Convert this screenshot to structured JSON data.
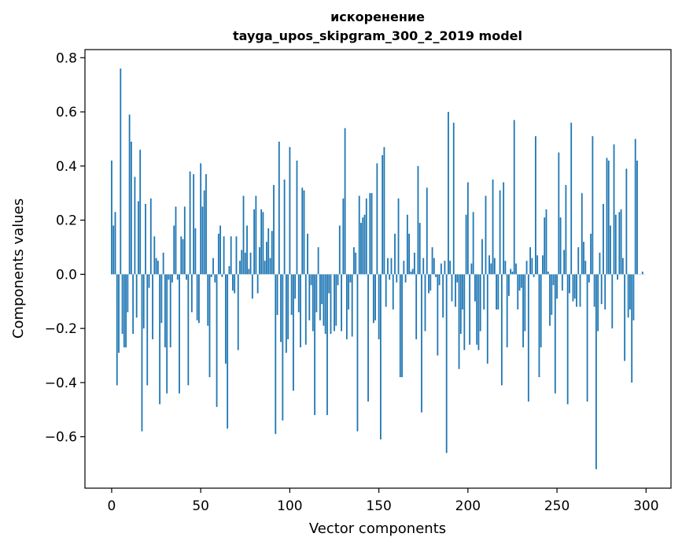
{
  "chart_data": {
    "type": "bar",
    "title": "искоренение",
    "subtitle": "tayga_upos_skipgram_300_2_2019 model",
    "xlabel": "Vector components",
    "ylabel": "Components values",
    "xlim": [
      -15,
      314
    ],
    "ylim": [
      -0.79,
      0.83
    ],
    "xticks": [
      0,
      50,
      100,
      150,
      200,
      250,
      300
    ],
    "yticks": [
      -0.6,
      -0.4,
      -0.2,
      0.0,
      0.2,
      0.4,
      0.6,
      0.8
    ],
    "xtick_labels": [
      "0",
      "50",
      "100",
      "150",
      "200",
      "250",
      "300"
    ],
    "ytick_labels": [
      "−0.6",
      "−0.4",
      "−0.2",
      "0.0",
      "0.2",
      "0.4",
      "0.6",
      "0.8"
    ],
    "grid": false,
    "color": "#1f77b4",
    "series": [
      {
        "values": [
          0.42,
          0.18,
          0.23,
          -0.41,
          -0.29,
          0.76,
          -0.22,
          -0.27,
          -0.27,
          -0.14,
          0.59,
          0.49,
          -0.22,
          0.36,
          -0.16,
          0.27,
          0.46,
          -0.58,
          -0.2,
          0.26,
          -0.41,
          -0.05,
          0.28,
          -0.24,
          0.14,
          0.06,
          0.05,
          -0.48,
          -0.18,
          0.08,
          -0.27,
          -0.44,
          -0.02,
          -0.27,
          -0.03,
          0.18,
          0.25,
          -0.02,
          -0.44,
          0.14,
          0.13,
          0.25,
          -0.02,
          -0.41,
          0.38,
          -0.14,
          0.37,
          0.17,
          -0.17,
          -0.18,
          0.41,
          0.25,
          0.31,
          0.37,
          -0.19,
          -0.38,
          -0.01,
          0.06,
          -0.03,
          -0.49,
          0.15,
          0.18,
          -0.01,
          0.14,
          -0.33,
          -0.57,
          0.03,
          0.14,
          -0.06,
          -0.07,
          0.14,
          -0.28,
          0.05,
          0.09,
          0.29,
          0.08,
          0.18,
          0.02,
          0.08,
          -0.09,
          0.24,
          0.29,
          -0.07,
          0.1,
          0.24,
          0.23,
          0.05,
          0.12,
          0.17,
          0.06,
          0.16,
          0.33,
          -0.59,
          -0.15,
          0.49,
          -0.25,
          -0.54,
          0.35,
          -0.29,
          -0.24,
          0.47,
          -0.15,
          -0.43,
          -0.09,
          0.42,
          -0.14,
          -0.27,
          0.32,
          0.31,
          -0.26,
          0.15,
          -0.17,
          -0.04,
          -0.21,
          -0.52,
          -0.14,
          0.1,
          -0.17,
          -0.11,
          -0.19,
          -0.22,
          -0.52,
          -0.07,
          -0.22,
          0.0,
          -0.21,
          -0.19,
          -0.04,
          0.18,
          -0.21,
          0.28,
          0.54,
          -0.24,
          -0.13,
          -0.03,
          -0.23,
          0.1,
          0.08,
          -0.58,
          0.29,
          0.19,
          0.21,
          0.22,
          0.28,
          -0.47,
          0.3,
          0.3,
          -0.18,
          -0.17,
          0.41,
          -0.24,
          -0.61,
          0.44,
          0.47,
          -0.12,
          0.06,
          -0.02,
          0.06,
          -0.13,
          0.15,
          -0.03,
          0.28,
          -0.38,
          -0.38,
          0.05,
          -0.03,
          0.22,
          0.15,
          0.01,
          0.02,
          0.08,
          -0.24,
          0.4,
          0.19,
          -0.51,
          0.06,
          -0.21,
          0.32,
          -0.07,
          -0.06,
          0.1,
          0.06,
          -0.01,
          -0.3,
          -0.04,
          0.04,
          -0.16,
          0.05,
          -0.66,
          0.6,
          0.05,
          -0.1,
          0.56,
          -0.12,
          -0.03,
          -0.35,
          -0.22,
          -0.13,
          -0.28,
          0.22,
          0.34,
          -0.26,
          0.04,
          0.23,
          -0.1,
          -0.26,
          -0.28,
          -0.21,
          0.13,
          -0.13,
          0.29,
          -0.33,
          0.07,
          0.04,
          0.35,
          0.06,
          -0.13,
          -0.13,
          0.31,
          -0.41,
          0.34,
          0.05,
          -0.27,
          -0.08,
          0.02,
          0.01,
          0.57,
          0.04,
          -0.13,
          -0.06,
          -0.05,
          -0.27,
          -0.21,
          0.05,
          -0.47,
          0.1,
          0.06,
          -0.01,
          0.51,
          0.07,
          -0.38,
          -0.27,
          0.07,
          0.21,
          0.24,
          0.01,
          -0.19,
          -0.15,
          -0.04,
          -0.44,
          -0.09,
          0.45,
          0.21,
          -0.06,
          0.09,
          0.33,
          -0.48,
          -0.07,
          0.56,
          -0.1,
          -0.09,
          -0.12,
          0.1,
          -0.12,
          0.3,
          0.12,
          0.05,
          -0.47,
          -0.03,
          0.15,
          0.51,
          -0.12,
          -0.72,
          -0.21,
          0.08,
          -0.11,
          0.26,
          -0.13,
          0.43,
          0.42,
          0.18,
          -0.2,
          0.48,
          0.22,
          -0.02,
          0.23,
          0.24,
          0.06,
          -0.32,
          0.39,
          -0.16,
          -0.13,
          -0.4,
          -0.17,
          0.5,
          0.42,
          0.0,
          0.0,
          0.01,
          0.0
        ]
      }
    ]
  }
}
